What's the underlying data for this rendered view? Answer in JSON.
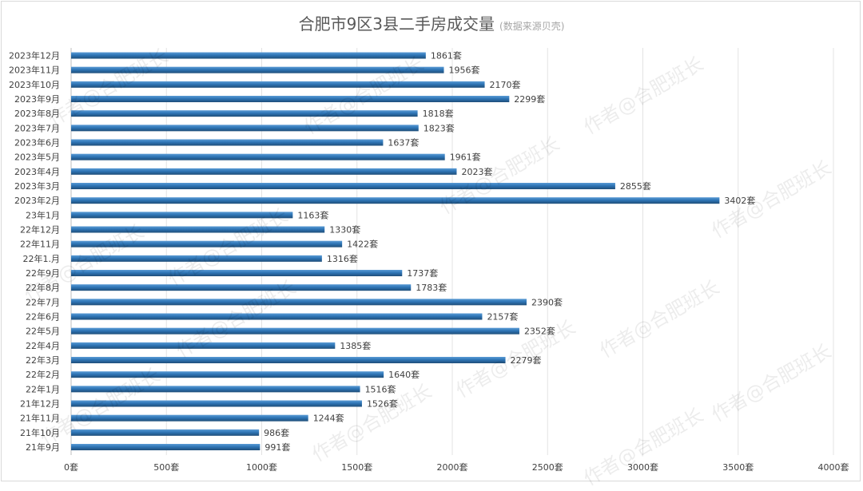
{
  "chart_data": {
    "type": "bar",
    "orientation": "horizontal",
    "title": "合肥市9区3县二手房成交量",
    "subtitle": "(数据来源贝壳)",
    "value_suffix": "套",
    "xlim": [
      0,
      4000
    ],
    "x_ticks": [
      "0套",
      "500套",
      "1000套",
      "1500套",
      "2000套",
      "2500套",
      "3000套",
      "3500套",
      "4000套"
    ],
    "x_tick_values": [
      0,
      500,
      1000,
      1500,
      2000,
      2500,
      3000,
      3500,
      4000
    ],
    "grid": true,
    "legend": "none",
    "bar_color": "#2e75b6",
    "categories": [
      "2023年12月",
      "2023年11月",
      "2023年10月",
      "2023年9月",
      "2023年8月",
      "2023年7月",
      "2023年6月",
      "2023年5月",
      "2023年4月",
      "2023年3月",
      "2023年2月",
      "23年1月",
      "22年12月",
      "22年11月",
      "22年1.月",
      "22年9月",
      "22年8月",
      "22年7月",
      "22年6月",
      "22年5月",
      "22年4月",
      "22年3月",
      "22年2月",
      "22年1月",
      "21年12月",
      "21年11月",
      "21年10月",
      "21年9月"
    ],
    "values": [
      1861,
      1956,
      2170,
      2299,
      1818,
      1823,
      1637,
      1961,
      2023,
      2855,
      3402,
      1163,
      1330,
      1422,
      1316,
      1737,
      1783,
      2390,
      2157,
      2352,
      1385,
      2279,
      1640,
      1516,
      1526,
      1244,
      986,
      991
    ],
    "data_labels": [
      "1861套",
      "1956套",
      "2170套",
      "2299套",
      "1818套",
      "1823套",
      "1637套",
      "1961套",
      "2023套",
      "2855套",
      "3402套",
      "1163套",
      "1330套",
      "1422套",
      "1316套",
      "1737套",
      "1783套",
      "2390套",
      "2157套",
      "2352套",
      "1385套",
      "2279套",
      "1640套",
      "1516套",
      "1526套",
      "1244套",
      "986套",
      "991套"
    ]
  },
  "watermark": {
    "text": "作者@合肥班长"
  }
}
